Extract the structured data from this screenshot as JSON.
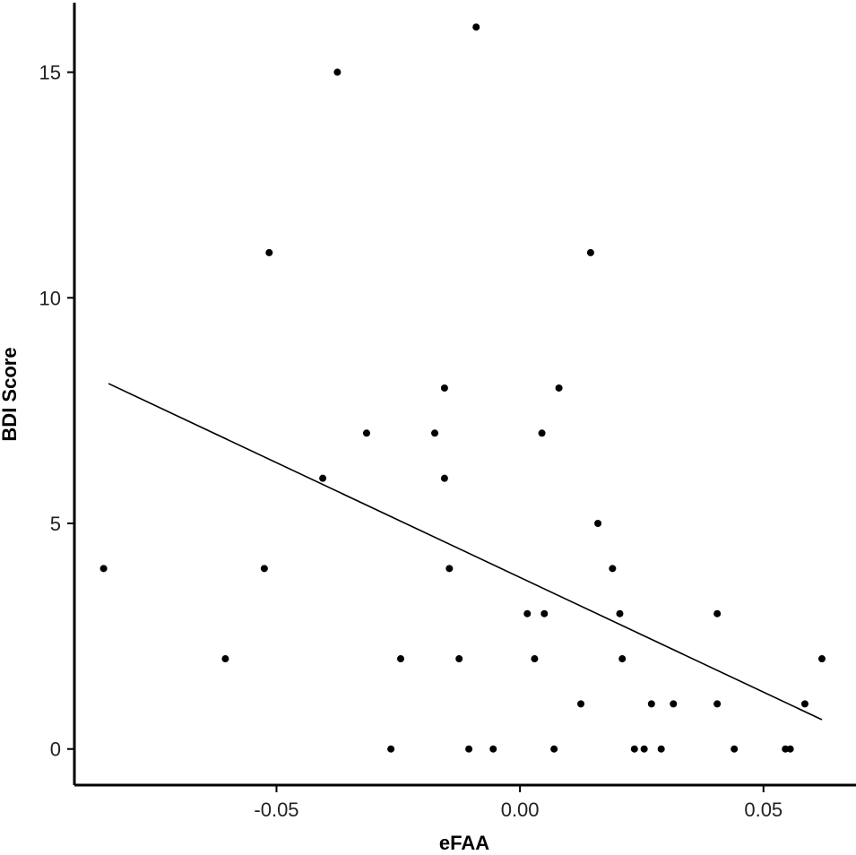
{
  "chart_data": {
    "type": "scatter",
    "title": "",
    "xlabel": "eFAA",
    "ylabel": "BDI Score",
    "xlim": [
      -0.0915,
      0.069
    ],
    "ylim": [
      -0.8,
      16.6
    ],
    "x_ticks": [
      -0.05,
      0.0,
      0.05
    ],
    "x_tick_labels": [
      "-0.05",
      "0.00",
      "0.05"
    ],
    "y_ticks": [
      0,
      5,
      10,
      15
    ],
    "y_tick_labels": [
      "0",
      "5",
      "10",
      "15"
    ],
    "grid": false,
    "legend": "none",
    "points": [
      {
        "x": -0.0855,
        "y": 4
      },
      {
        "x": -0.0605,
        "y": 2
      },
      {
        "x": -0.0525,
        "y": 4
      },
      {
        "x": -0.0515,
        "y": 11
      },
      {
        "x": -0.0405,
        "y": 6
      },
      {
        "x": -0.0375,
        "y": 15
      },
      {
        "x": -0.0315,
        "y": 7
      },
      {
        "x": -0.0265,
        "y": 0
      },
      {
        "x": -0.0245,
        "y": 2
      },
      {
        "x": -0.0175,
        "y": 7
      },
      {
        "x": -0.0155,
        "y": 8
      },
      {
        "x": -0.0155,
        "y": 6
      },
      {
        "x": -0.0145,
        "y": 4
      },
      {
        "x": -0.0125,
        "y": 2
      },
      {
        "x": -0.0105,
        "y": 0
      },
      {
        "x": -0.009,
        "y": 16
      },
      {
        "x": -0.0055,
        "y": 0
      },
      {
        "x": 0.0015,
        "y": 3
      },
      {
        "x": 0.003,
        "y": 2
      },
      {
        "x": 0.0045,
        "y": 7
      },
      {
        "x": 0.005,
        "y": 3
      },
      {
        "x": 0.007,
        "y": 0
      },
      {
        "x": 0.008,
        "y": 8
      },
      {
        "x": 0.0125,
        "y": 1
      },
      {
        "x": 0.0145,
        "y": 11
      },
      {
        "x": 0.016,
        "y": 5
      },
      {
        "x": 0.019,
        "y": 4
      },
      {
        "x": 0.0205,
        "y": 3
      },
      {
        "x": 0.021,
        "y": 2
      },
      {
        "x": 0.0235,
        "y": 0
      },
      {
        "x": 0.0255,
        "y": 0
      },
      {
        "x": 0.027,
        "y": 1
      },
      {
        "x": 0.029,
        "y": 0
      },
      {
        "x": 0.0315,
        "y": 1
      },
      {
        "x": 0.0405,
        "y": 3
      },
      {
        "x": 0.0405,
        "y": 1
      },
      {
        "x": 0.044,
        "y": 0
      },
      {
        "x": 0.0545,
        "y": 0
      },
      {
        "x": 0.0555,
        "y": 0
      },
      {
        "x": 0.0585,
        "y": 1
      },
      {
        "x": 0.062,
        "y": 2
      }
    ],
    "trend_line": {
      "x": [
        -0.0845,
        0.062
      ],
      "y": [
        8.1,
        0.65
      ]
    },
    "colors": {
      "points": "#000000",
      "line": "#000000",
      "axes": "#000000"
    }
  }
}
